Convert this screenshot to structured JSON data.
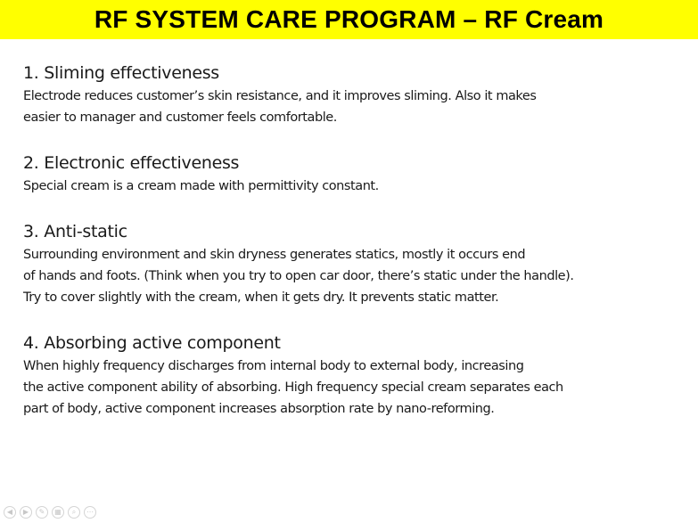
{
  "slide": {
    "title": "RF SYSTEM CARE PROGRAM – RF Cream",
    "title_bar_color": "#ffff00"
  },
  "sections": [
    {
      "heading": "1. Sliming effectiveness",
      "lines": [
        "Electrode reduces customer’s skin resistance, and it improves sliming. Also it makes",
        "easier to manager and customer feels comfortable."
      ]
    },
    {
      "heading": "2. Electronic effectiveness",
      "lines": [
        "Special cream is a cream made with permittivity constant."
      ]
    },
    {
      "heading": "3. Anti-static",
      "lines": [
        "Surrounding environment and skin dryness generates statics, mostly it occurs end",
        "of hands and foots. (Think when you try to open car door, there’s static under the handle).",
        "Try to cover slightly with the cream, when it gets dry. It prevents static matter."
      ]
    },
    {
      "heading": "4. Absorbing active component",
      "lines": [
        "When highly frequency discharges from internal body to external body, increasing",
        "the active component ability of absorbing. High frequency special cream separates each",
        "part of body, active component increases absorption rate by nano-reforming."
      ]
    }
  ],
  "controls": [
    {
      "icon": "previous-icon",
      "glyph": "◀"
    },
    {
      "icon": "next-icon",
      "glyph": "▶"
    },
    {
      "icon": "pen-icon",
      "glyph": "✎"
    },
    {
      "icon": "slides-icon",
      "glyph": "▦"
    },
    {
      "icon": "zoom-icon",
      "glyph": "⌕"
    },
    {
      "icon": "more-icon",
      "glyph": "⋯"
    }
  ]
}
